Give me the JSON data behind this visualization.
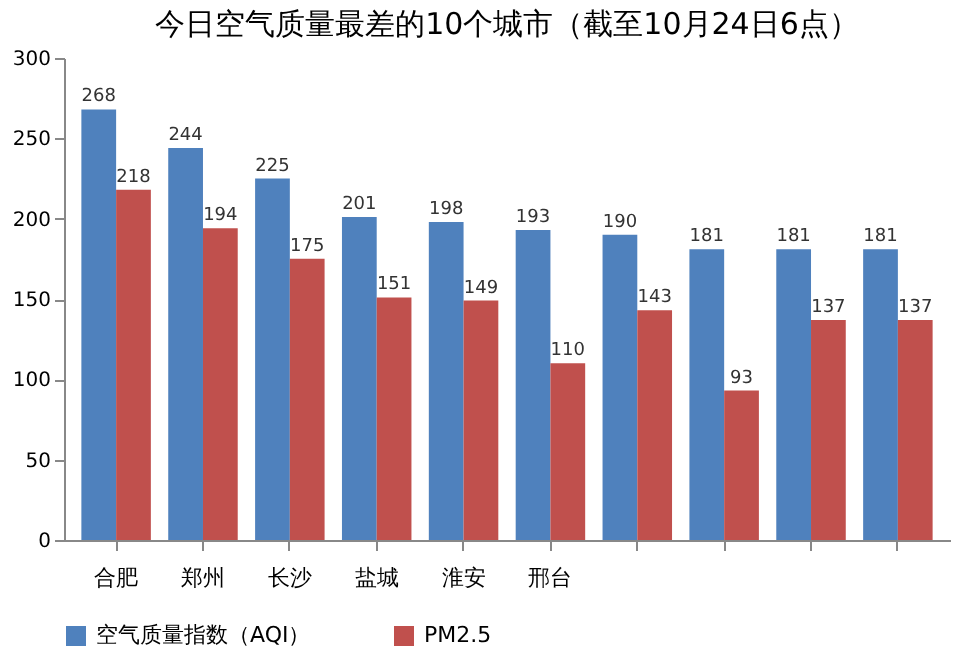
{
  "chart_data": {
    "type": "bar",
    "title": "今日空气质量最差的10个城市（截至10月24日6点）",
    "categories": [
      "合肥",
      "郑州",
      "长沙",
      "盐城",
      "淮安",
      "邢台",
      null,
      null,
      null,
      null
    ],
    "series": [
      {
        "name": "空气质量指数（AQI）",
        "color": "#4f81bd",
        "values": [
          268,
          244,
          225,
          201,
          198,
          193,
          190,
          181,
          181,
          181
        ]
      },
      {
        "name": "PM2.5",
        "color": "#c0504d",
        "values": [
          218,
          194,
          175,
          151,
          149,
          110,
          143,
          93,
          137,
          137
        ]
      }
    ],
    "ylim": [
      0,
      300
    ],
    "yticks": [
      0,
      50,
      100,
      150,
      200,
      250,
      300
    ],
    "data_labels": true,
    "legend": "bottom",
    "grid": false
  }
}
